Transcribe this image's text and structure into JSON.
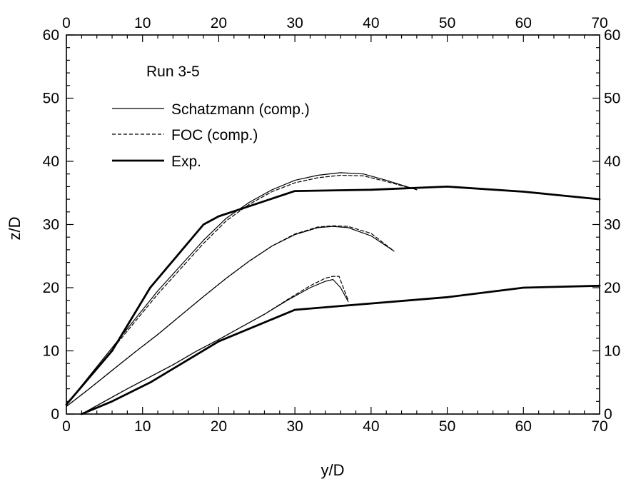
{
  "chart_data": {
    "type": "line",
    "title": "",
    "xlabel": "y/D",
    "ylabel": "z/D",
    "xlim": [
      0,
      70
    ],
    "ylim": [
      0,
      60
    ],
    "x_ticks": [
      0,
      10,
      20,
      30,
      40,
      50,
      60,
      70
    ],
    "y_ticks": [
      0,
      10,
      20,
      30,
      40,
      50,
      60
    ],
    "grid": false,
    "legend_title": "Run 3-5",
    "legend_position": "top-left",
    "legend": [
      {
        "label": "Schatzmann (comp.)",
        "style": "thin-solid"
      },
      {
        "label": "FOC (comp.)",
        "style": "dashed"
      },
      {
        "label": "Exp.",
        "style": "thick-solid"
      }
    ],
    "series": [
      {
        "name": "Schatzmann (comp.)",
        "style": "thin-solid",
        "x": [
          0,
          3,
          6,
          9,
          12,
          15,
          18,
          21,
          24,
          27,
          30,
          33,
          36,
          39,
          42,
          46
        ],
        "y": [
          1.5,
          6,
          10.5,
          15,
          19.5,
          23.5,
          27.5,
          31,
          33.5,
          35.5,
          37,
          37.8,
          38.2,
          38,
          37,
          35.5
        ]
      },
      {
        "name": "FOC (comp.)",
        "style": "dashed",
        "x": [
          0,
          3,
          6,
          9,
          12,
          15,
          18,
          21,
          24,
          27,
          30,
          33,
          36,
          39,
          42,
          46
        ],
        "y": [
          1.5,
          5.8,
          10.2,
          14.6,
          19,
          23,
          27,
          30.6,
          33.2,
          35.2,
          36.6,
          37.4,
          37.8,
          37.7,
          36.8,
          35.5
        ]
      },
      {
        "name": "Schatzmann (comp.)",
        "style": "thin-solid",
        "x": [
          0,
          3,
          6,
          9,
          12,
          15,
          18,
          21,
          24,
          27,
          30,
          33,
          35,
          37,
          40,
          43
        ],
        "y": [
          1.2,
          4,
          6.9,
          9.8,
          12.6,
          15.6,
          18.6,
          21.5,
          24.2,
          26.6,
          28.4,
          29.5,
          29.7,
          29.5,
          28.2,
          25.8
        ]
      },
      {
        "name": "FOC (comp.)",
        "style": "dashed",
        "x": [
          0,
          3,
          6,
          9,
          12,
          15,
          18,
          21,
          24,
          27,
          30,
          33,
          35,
          37,
          40,
          43
        ],
        "y": [
          1.2,
          4,
          6.9,
          9.8,
          12.6,
          15.6,
          18.6,
          21.5,
          24.2,
          26.6,
          28.5,
          29.6,
          29.8,
          29.7,
          28.6,
          25.8
        ]
      },
      {
        "name": "Schatzmann (comp.)",
        "style": "thin-solid",
        "x": [
          2,
          5,
          8,
          11,
          14,
          17,
          20,
          23,
          26,
          29,
          32,
          34,
          35,
          36,
          37
        ],
        "y": [
          0,
          2,
          4,
          5.9,
          7.8,
          9.9,
          11.8,
          13.8,
          15.8,
          18,
          20,
          21,
          21.3,
          20,
          17.8
        ]
      },
      {
        "name": "FOC (comp.)",
        "style": "dashed",
        "x": [
          2,
          5,
          8,
          11,
          14,
          17,
          20,
          23,
          26,
          29,
          32,
          34,
          35,
          35.8,
          36.2,
          37
        ],
        "y": [
          0,
          2,
          4,
          5.9,
          7.8,
          9.9,
          11.8,
          13.8,
          15.8,
          18.1,
          20.3,
          21.5,
          21.8,
          21.8,
          20.5,
          18
        ]
      },
      {
        "name": "Exp.",
        "style": "thick-solid",
        "x": [
          0,
          6,
          11,
          18,
          20,
          23,
          30,
          40,
          50,
          60,
          70
        ],
        "y": [
          1.5,
          10,
          20,
          30,
          31.3,
          32.5,
          35.3,
          35.5,
          36,
          35.2,
          34
        ]
      },
      {
        "name": "Exp.",
        "style": "thick-solid",
        "x": [
          2,
          6,
          11,
          20,
          30,
          40,
          50,
          60,
          70
        ],
        "y": [
          0,
          2,
          5,
          11.5,
          16.5,
          17.5,
          18.5,
          20,
          20.3
        ]
      }
    ]
  }
}
